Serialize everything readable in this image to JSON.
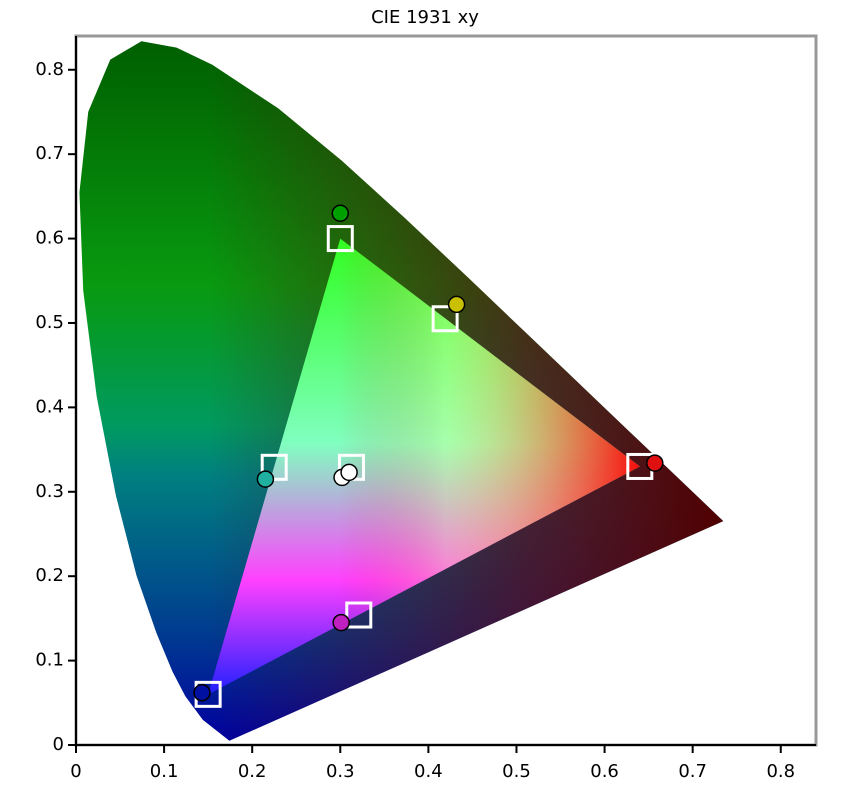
{
  "chart_data": {
    "type": "scatter",
    "title": "CIE 1931 xy",
    "xlim": [
      0,
      0.84
    ],
    "ylim": [
      0,
      0.84
    ],
    "xticks": [
      0,
      0.1,
      0.2,
      0.3,
      0.4,
      0.5,
      0.6,
      0.7,
      0.8
    ],
    "yticks": [
      0,
      0.1,
      0.2,
      0.3,
      0.4,
      0.5,
      0.6,
      0.7,
      0.8
    ],
    "series": [
      {
        "marker": "square",
        "color": "#ffffff",
        "x": [
          0.64,
          0.3,
          0.15,
          0.3127,
          0.225,
          0.321,
          0.419
        ],
        "y": [
          0.33,
          0.6,
          0.06,
          0.329,
          0.329,
          0.154,
          0.505
        ]
      },
      {
        "marker": "circle",
        "colors": [
          "#00a000",
          "#c8c000",
          "#e01010",
          "#20b0a0",
          "#ffffff",
          "#ffffff",
          "#c020c0",
          "#0010a0"
        ],
        "x": [
          0.3,
          0.432,
          0.657,
          0.215,
          0.302,
          0.31,
          0.301,
          0.143
        ],
        "y": [
          0.63,
          0.522,
          0.334,
          0.315,
          0.317,
          0.323,
          0.145,
          0.062
        ]
      }
    ]
  }
}
